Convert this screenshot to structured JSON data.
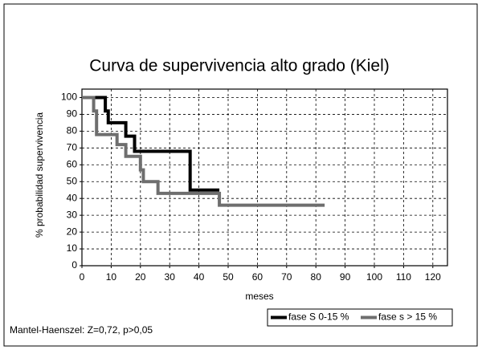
{
  "chart_data": {
    "type": "line",
    "title": "Curva de supervivencia alto grado (Kiel)",
    "xlabel": "meses",
    "ylabel": "% probabilidad supervivencia",
    "xlim": [
      0,
      125
    ],
    "xticks": [
      0,
      10,
      20,
      30,
      40,
      50,
      60,
      70,
      80,
      90,
      100,
      110,
      120
    ],
    "ylim": [
      0,
      105
    ],
    "yticks": [
      0,
      10,
      20,
      30,
      40,
      50,
      60,
      70,
      80,
      90,
      100
    ],
    "grid": true,
    "legend": "bottom-right",
    "series": [
      {
        "name": "fase S 0-15 %",
        "color": "#000000",
        "x": [
          0,
          8,
          8,
          9,
          9,
          15,
          15,
          18,
          18,
          37,
          37,
          47
        ],
        "values": [
          100,
          100,
          92,
          92,
          85,
          85,
          77,
          77,
          68,
          68,
          45,
          45
        ]
      },
      {
        "name": "fase s > 15 %",
        "color": "#6e6e6e",
        "x": [
          0,
          4,
          4,
          5,
          5,
          12,
          12,
          15,
          15,
          20,
          20,
          21,
          21,
          26,
          26,
          47,
          47,
          83
        ],
        "values": [
          100,
          100,
          92,
          92,
          78,
          78,
          72,
          72,
          65,
          65,
          57,
          57,
          50,
          50,
          43,
          43,
          36,
          36
        ]
      }
    ],
    "annotation": "Mantel-Haenszel: Z=0,72, p>0,05"
  }
}
